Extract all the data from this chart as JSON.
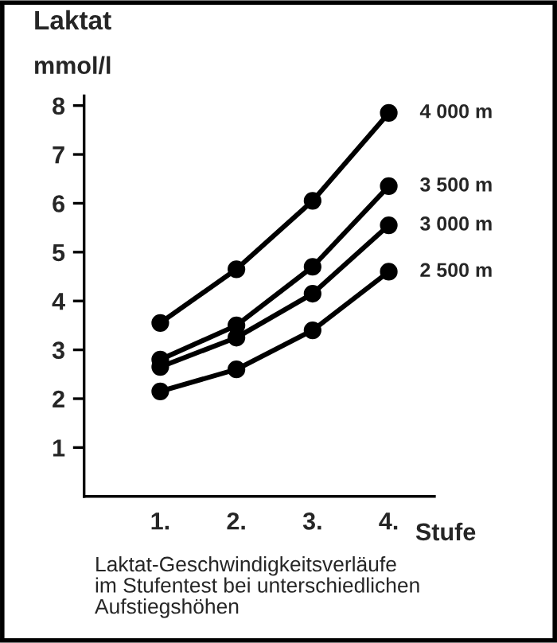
{
  "chart_data": {
    "type": "line",
    "title": "Laktat",
    "ylabel": "mmol/l",
    "xlabel": "Stufe",
    "categories": [
      "1.",
      "2.",
      "3.",
      "4."
    ],
    "series": [
      {
        "name": "4 000 m",
        "color": "#000000",
        "values": [
          3.55,
          4.65,
          6.05,
          7.85
        ]
      },
      {
        "name": "3 500 m",
        "color": "#000000",
        "values": [
          2.8,
          3.5,
          4.7,
          6.35
        ]
      },
      {
        "name": "3 000 m",
        "color": "#000000",
        "values": [
          2.65,
          3.25,
          4.15,
          5.55
        ]
      },
      {
        "name": "2 500 m",
        "color": "#000000",
        "values": [
          2.15,
          2.6,
          3.4,
          4.6
        ]
      }
    ],
    "ylim": [
      0,
      8.2
    ],
    "yticks": [
      1,
      2,
      3,
      4,
      5,
      6,
      7,
      8
    ],
    "grid": false,
    "legend": false,
    "marker": "circle",
    "line_style": "solid",
    "annotations": [
      "Laktat-Geschwindigkeitsverläufe\nim Stufentest bei unterschiedlichen\nAufstiegshöhen"
    ]
  }
}
